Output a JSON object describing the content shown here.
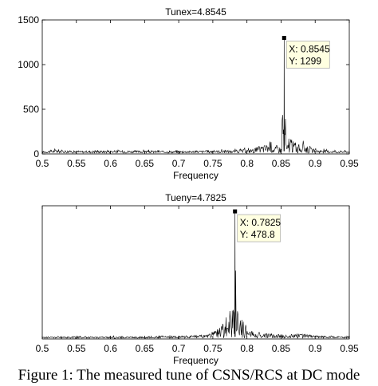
{
  "header_fragment": "",
  "caption": "Figure 1: The measured tune of CSNS/RCS at DC mode",
  "chart_data": [
    {
      "type": "line",
      "title": "Tunex=4.8545",
      "xlabel": "Frequency",
      "ylabel": "",
      "xlim": [
        0.5,
        0.95
      ],
      "ylim": [
        0,
        1500
      ],
      "xticks": [
        "0.5",
        "0.55",
        "0.6",
        "0.65",
        "0.7",
        "0.75",
        "0.8",
        "0.85",
        "0.9",
        "0.95"
      ],
      "yticks": [
        "0",
        "500",
        "1000",
        "1500"
      ],
      "peak": {
        "x": 0.8545,
        "y": 1299
      },
      "datatip": {
        "x_label": "X: 0.8545",
        "y_label": "Y: 1299"
      },
      "baseline_level": 30,
      "series": [
        {
          "x": [
            0.5,
            0.52,
            0.55,
            0.6,
            0.65,
            0.7,
            0.75,
            0.78,
            0.8,
            0.81,
            0.82,
            0.83,
            0.835,
            0.84,
            0.845,
            0.85,
            0.8545,
            0.858,
            0.862,
            0.87,
            0.88,
            0.885,
            0.89,
            0.9,
            0.92,
            0.95
          ],
          "y": [
            30,
            60,
            35,
            45,
            40,
            35,
            45,
            50,
            60,
            80,
            120,
            150,
            200,
            90,
            150,
            80,
            1299,
            60,
            250,
            180,
            120,
            160,
            100,
            60,
            45,
            35
          ]
        }
      ]
    },
    {
      "type": "line",
      "title": "Tueny=4.7825",
      "xlabel": "Frequency",
      "ylabel": "",
      "xlim": [
        0.5,
        0.95
      ],
      "ylim": [
        0,
        500
      ],
      "xticks": [
        "0.5",
        "0.55",
        "0.6",
        "0.65",
        "0.7",
        "0.75",
        "0.8",
        "0.85",
        "0.9",
        "0.95"
      ],
      "yticks": [],
      "peak": {
        "x": 0.7825,
        "y": 478.8
      },
      "datatip": {
        "x_label": "X: 0.7825",
        "y_label": "Y: 478.8"
      },
      "baseline_level": 8,
      "series": [
        {
          "x": [
            0.5,
            0.55,
            0.6,
            0.65,
            0.7,
            0.74,
            0.75,
            0.76,
            0.77,
            0.775,
            0.78,
            0.7825,
            0.785,
            0.79,
            0.795,
            0.8,
            0.81,
            0.82,
            0.85,
            0.88,
            0.9,
            0.95
          ],
          "y": [
            8,
            10,
            9,
            10,
            12,
            20,
            40,
            60,
            90,
            140,
            180,
            478.8,
            170,
            120,
            100,
            60,
            40,
            30,
            20,
            25,
            15,
            10
          ]
        }
      ]
    }
  ]
}
